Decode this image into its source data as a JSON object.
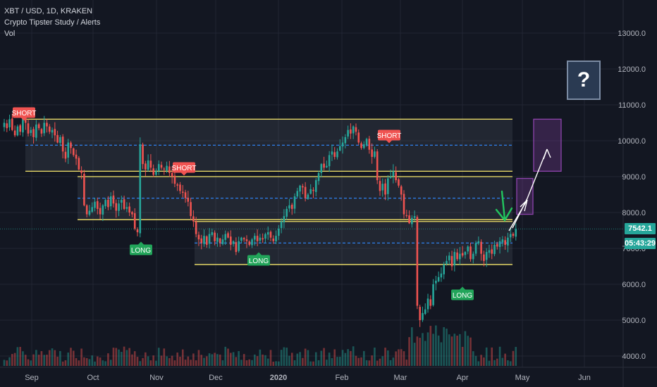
{
  "legend": {
    "symbol": "XBT / USD, 1D, KRAKEN",
    "study": "Crypto Tipster Study / Alerts",
    "vol": "Vol"
  },
  "price_tags": {
    "last": "7542.1",
    "countdown": "05:43:29"
  },
  "question_mark": "?",
  "colors": {
    "background": "#131722",
    "up": "#26a69a",
    "down": "#ef5350",
    "zone_line": "#f5e56b",
    "mid_line": "#2f80ed",
    "projection": "#8e44ad",
    "arrow_green": "#22c55e"
  },
  "chart_data": {
    "type": "candlestick",
    "symbol": "XBT / USD",
    "timeframe": "1D",
    "exchange": "KRAKEN",
    "x_ticks": [
      "Sep",
      "Oct",
      "Nov",
      "Dec",
      "2020",
      "Feb",
      "Mar",
      "Apr",
      "May",
      "Jun"
    ],
    "y_ticks": [
      4000.0,
      5000.0,
      6000.0,
      7000.0,
      8000.0,
      9000.0,
      10000.0,
      11000.0,
      12000.0,
      13000.0
    ],
    "ylim": [
      3800,
      13900
    ],
    "last_price": 7542.1,
    "closes": [
      10500,
      10350,
      10600,
      10300,
      10150,
      10400,
      10250,
      10700,
      10500,
      10200,
      10300,
      10100,
      10450,
      10350,
      10200,
      10500,
      10400,
      10250,
      10300,
      10150,
      9950,
      10100,
      9700,
      9500,
      9950,
      9800,
      9600,
      9500,
      9200,
      9100,
      8200,
      7950,
      8050,
      8150,
      8300,
      8100,
      7950,
      8200,
      8350,
      8150,
      8450,
      8250,
      8050,
      8250,
      8350,
      8100,
      8150,
      8000,
      7950,
      7550,
      7450,
      9900,
      9350,
      9200,
      9450,
      9250,
      9050,
      9150,
      9350,
      9250,
      9200,
      9300,
      9100,
      9000,
      8800,
      8750,
      8600,
      8550,
      8400,
      8300,
      7900,
      7750,
      7400,
      7250,
      7150,
      7350,
      7100,
      7400,
      7450,
      7200,
      7300,
      7150,
      7250,
      7400,
      7300,
      7100,
      7200,
      6900,
      7200,
      7300,
      7250,
      7200,
      7100,
      7250,
      7350,
      7200,
      7300,
      7250,
      7400,
      7450,
      7300,
      7200,
      7350,
      7550,
      7750,
      7900,
      8100,
      8200,
      8100,
      8450,
      8600,
      8750,
      8700,
      8400,
      8500,
      8650,
      8600,
      8900,
      9100,
      9350,
      9250,
      9300,
      9600,
      9700,
      9550,
      9700,
      9850,
      9950,
      10100,
      10300,
      10200,
      10400,
      10250,
      9950,
      9800,
      9900,
      10050,
      9750,
      9550,
      9700,
      8900,
      8600,
      8800,
      8500,
      8950,
      9000,
      9150,
      8900,
      8750,
      8500,
      7950,
      7900,
      7700,
      7850,
      7900,
      5400,
      5000,
      5200,
      5300,
      5600,
      5400,
      6000,
      6100,
      6200,
      6300,
      6550,
      6650,
      6800,
      6500,
      6900,
      6700,
      6850,
      6800,
      6900,
      7050,
      6700,
      6850,
      7150,
      7200,
      6850,
      6650,
      6900,
      6950,
      6850,
      7100,
      7050,
      7200,
      7250,
      7100,
      7300,
      7400,
      7350,
      7542.1
    ],
    "zones": [
      {
        "top": 10600,
        "bottom": 9150,
        "mid": 9875
      },
      {
        "top": 9000,
        "bottom": 7800,
        "mid": 8400
      },
      {
        "top": 7750,
        "bottom": 6550,
        "mid": 7150
      }
    ],
    "signals": [
      {
        "label": "SHORT",
        "type": "short"
      },
      {
        "label": "SHORT",
        "type": "short"
      },
      {
        "label": "SHORT",
        "type": "short"
      },
      {
        "label": "LONG",
        "type": "long"
      },
      {
        "label": "LONG",
        "type": "long"
      },
      {
        "label": "LONG",
        "type": "long"
      }
    ],
    "projections": [
      {
        "low": 7950,
        "high": 8950
      },
      {
        "low": 9150,
        "high": 10600
      }
    ]
  }
}
